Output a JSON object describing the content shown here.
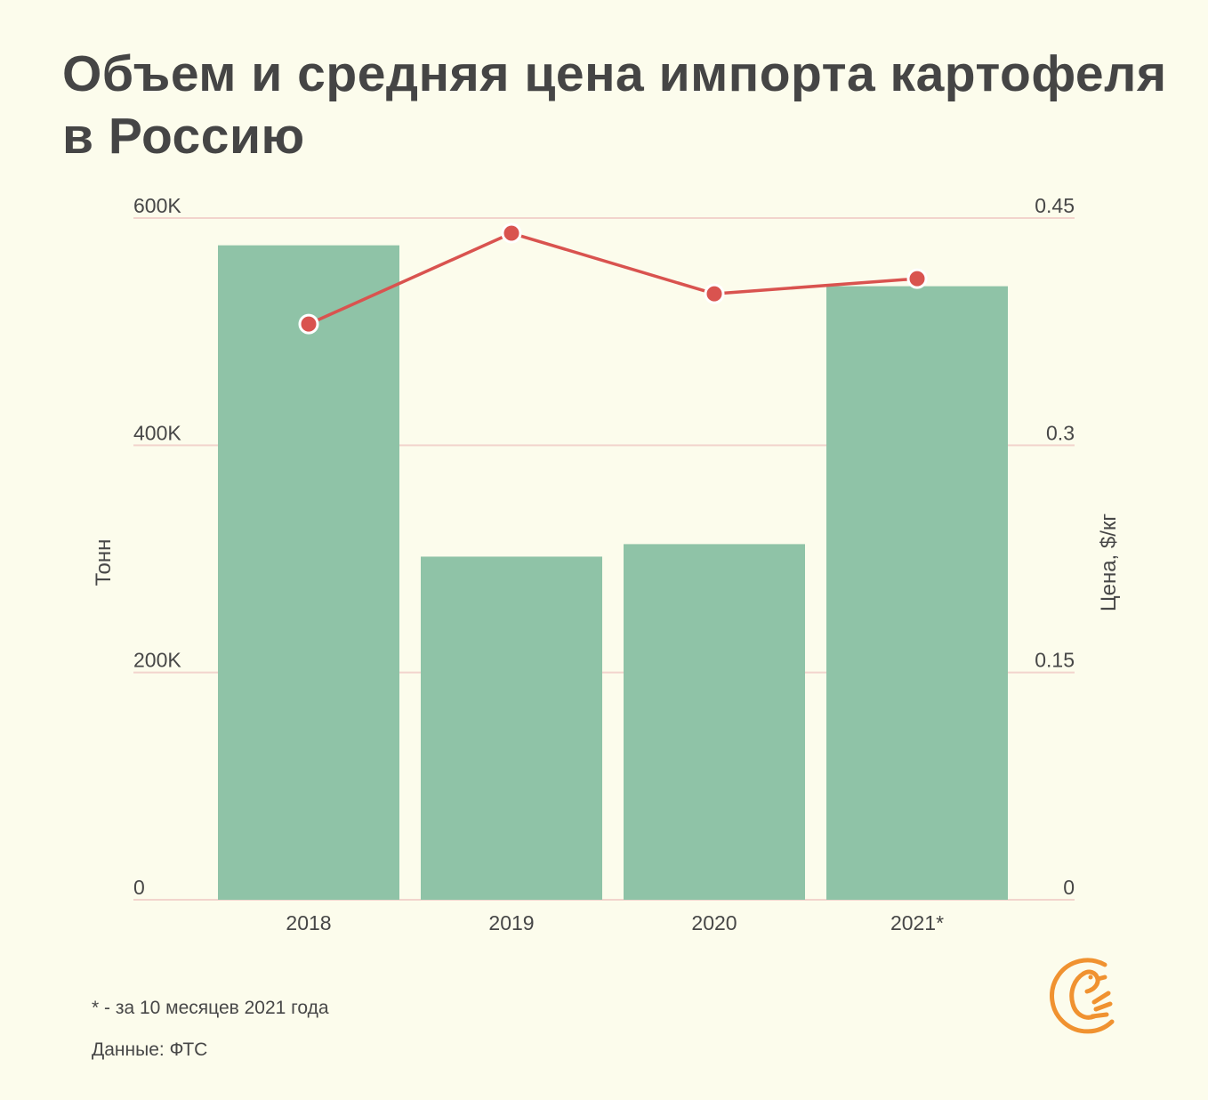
{
  "title": {
    "line1": "Объем и средняя цена импорта картофеля",
    "line2": "в Россию"
  },
  "chart_data": {
    "type": "bar",
    "categories": [
      "2018",
      "2019",
      "2020",
      "2021*"
    ],
    "series": [
      {
        "type": "bar",
        "axis": "left",
        "color": "#8fc3a7",
        "values": [
          576000,
          302000,
          313000,
          540000
        ]
      },
      {
        "type": "line",
        "axis": "right",
        "color": "#d9534f",
        "values": [
          0.38,
          0.44,
          0.4,
          0.41
        ]
      }
    ],
    "y_left": {
      "label": "Тонн",
      "range": [
        0,
        600000
      ],
      "ticks": [
        {
          "value": 0,
          "label": "0"
        },
        {
          "value": 200000,
          "label": "200K"
        },
        {
          "value": 400000,
          "label": "400K"
        },
        {
          "value": 600000,
          "label": "600K"
        }
      ]
    },
    "y_right": {
      "label": "Цена, $/кг",
      "range": [
        0,
        0.45
      ],
      "ticks": [
        {
          "value": 0,
          "label": "0"
        },
        {
          "value": 0.15,
          "label": "0.15"
        },
        {
          "value": 0.3,
          "label": "0.3"
        },
        {
          "value": 0.45,
          "label": "0.45"
        }
      ]
    },
    "grid": true,
    "gridline_color": "#f2d4cd"
  },
  "footnote": "* - за 10 месяцев 2021 года",
  "source": "Данные: ФТС",
  "logo": {
    "icon": "bird-logo-icon",
    "color": "#f09230"
  }
}
